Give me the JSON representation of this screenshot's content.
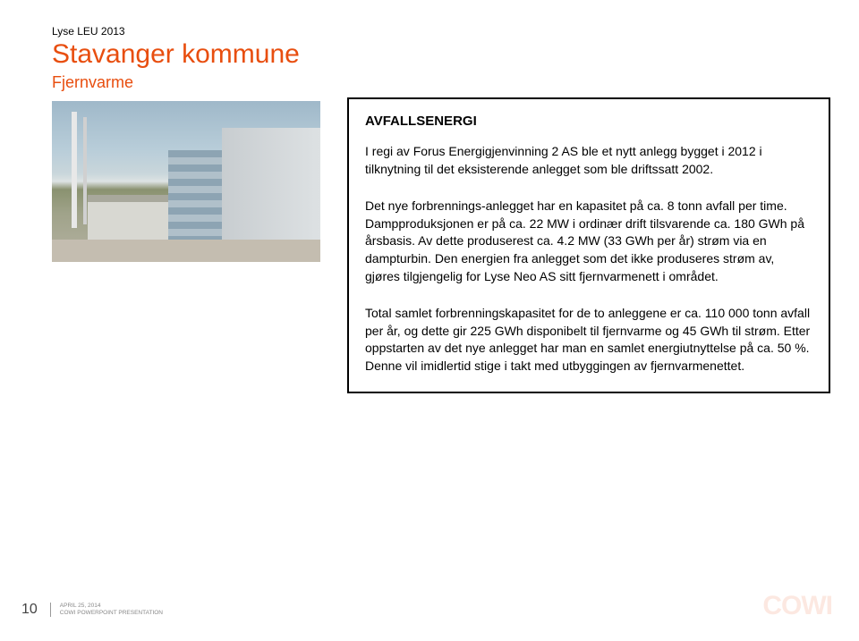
{
  "colors": {
    "accent": "#E84E0F",
    "text": "#000000",
    "footer_meta": "#888888",
    "background": "#ffffff",
    "border": "#000000"
  },
  "header": {
    "small": "Lyse LEU 2013",
    "title": "Stavanger kommune",
    "subtitle": "Fjernvarme"
  },
  "textbox": {
    "heading": "AVFALLSENERGI",
    "para1": "I regi av Forus Energigjenvinning 2 AS ble et nytt anlegg bygget i 2012 i tilknytning til det eksisterende anlegget som ble driftssatt 2002.",
    "para2": "Det nye forbrennings-anlegget har en kapasitet på ca. 8 tonn avfall per time. Dampproduksjonen er på ca. 22 MW i ordinær drift tilsvarende ca. 180 GWh på årsbasis. Av dette produserest ca. 4.2 MW (33 GWh per år) strøm via en dampturbin. Den energien fra anlegget som det ikke produseres strøm av, gjøres tilgjengelig for Lyse Neo AS sitt fjernvarmenett i området.",
    "para3": "Total samlet forbrenningskapasitet for de to anleggene er ca. 110 000 tonn avfall per år, og dette gir 225 GWh disponibelt til fjernvarme og 45 GWh til strøm. Etter oppstarten av det nye anlegget har man en samlet energiutnyttelse på ca. 50 %. Denne vil imidlertid stige i takt med utbyggingen av fjernvarmenettet."
  },
  "footer": {
    "page": "10",
    "date": "APRIL 25, 2014",
    "deck": "COWI POWERPOINT PRESENTATION"
  },
  "logo": "COWI",
  "photo": {
    "description": "industrial-plant-photo",
    "sky_color": "#9fb8c9",
    "building_color": "#dde1e3",
    "ground_color": "#c4bdb0"
  }
}
